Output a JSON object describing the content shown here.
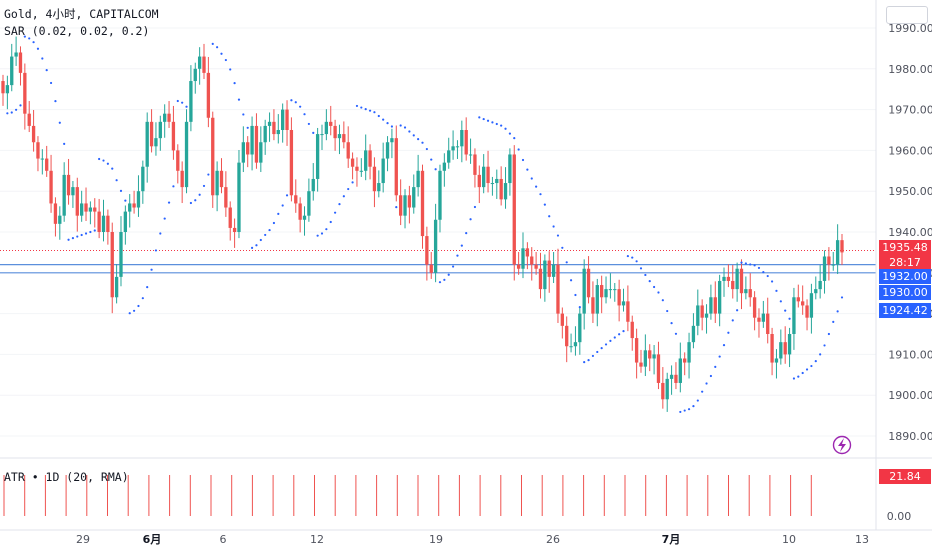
{
  "header": {
    "symbol_line": "Gold, 4小时, CAPITALCOM",
    "sar_line": "SAR (0.02, 0.02, 0.2)"
  },
  "atr": {
    "label": "ATR • 1D (20, RMA)",
    "value": "21.84",
    "axis_ticks": [
      {
        "value": 0,
        "label": "0.00"
      }
    ]
  },
  "price_tags": {
    "current": "1935.48",
    "countdown": "28:17",
    "level1": "1932.00",
    "level2": "1930.00",
    "level3": "1924.42"
  },
  "colors": {
    "up": "#26a69a",
    "down": "#ef5350",
    "sar": "#2962ff",
    "hline": "#5b8fdc",
    "atr": "#ef5350",
    "price_tag": "#f23645",
    "level_tag": "#2962ff"
  },
  "chart_data": {
    "type": "candlestick",
    "symbol": "Gold",
    "interval": "4小时",
    "source": "CAPITALCOM",
    "y_ticks": [
      1890,
      1900,
      1910,
      1920,
      1930,
      1940,
      1950,
      1960,
      1970,
      1980,
      1990
    ],
    "x_ticks": [
      "29",
      "6月",
      "6",
      "12",
      "19",
      "26",
      "7月",
      "10",
      "13"
    ],
    "horizontal_lines": [
      1932.0,
      1930.0
    ],
    "current_price": 1935.48,
    "closes": [
      1974,
      1976,
      1983,
      1984,
      1979,
      1969,
      1966,
      1962,
      1958,
      1958,
      1955,
      1947,
      1942,
      1944,
      1954,
      1949,
      1951,
      1944,
      1947,
      1945,
      1946,
      1945,
      1940,
      1944,
      1940,
      1924,
      1929,
      1940,
      1945,
      1947,
      1946,
      1950,
      1956,
      1967,
      1961,
      1963,
      1967,
      1969,
      1967,
      1960,
      1955,
      1951,
      1967,
      1977,
      1980,
      1983,
      1979,
      1968,
      1949,
      1955,
      1951,
      1946,
      1941,
      1940,
      1957,
      1962,
      1959,
      1966,
      1957,
      1962,
      1966,
      1967,
      1964,
      1965,
      1970,
      1965,
      1949,
      1947,
      1943,
      1944,
      1950,
      1953,
      1964,
      1964,
      1967,
      1966,
      1963,
      1964,
      1962,
      1958,
      1956,
      1955,
      1955,
      1960,
      1956,
      1950,
      1952,
      1958,
      1962,
      1963,
      1949,
      1944,
      1949,
      1946,
      1951,
      1955,
      1939,
      1932,
      1930,
      1943,
      1955,
      1957,
      1960,
      1961,
      1961,
      1965,
      1959,
      1959,
      1954,
      1951,
      1956,
      1952,
      1952,
      1953,
      1948,
      1952,
      1959,
      1932,
      1931,
      1936,
      1934,
      1932,
      1931,
      1926,
      1933,
      1929,
      1932,
      1920,
      1917,
      1912,
      1912,
      1913,
      1920,
      1931,
      1924,
      1920,
      1927,
      1924,
      1926,
      1926,
      1926,
      1922,
      1923,
      1918,
      1914,
      1908,
      1907,
      1911,
      1909,
      1910,
      1903,
      1899,
      1904,
      1905,
      1903,
      1909,
      1908,
      1913,
      1917,
      1922,
      1919,
      1920,
      1924,
      1920,
      1928,
      1929,
      1928,
      1926,
      1931,
      1925,
      1926,
      1924,
      1919,
      1918,
      1920,
      1915,
      1908,
      1909,
      1913,
      1910,
      1915,
      1924,
      1923,
      1922,
      1919,
      1925,
      1926,
      1928,
      1934,
      1932,
      1932,
      1938,
      1935
    ]
  }
}
